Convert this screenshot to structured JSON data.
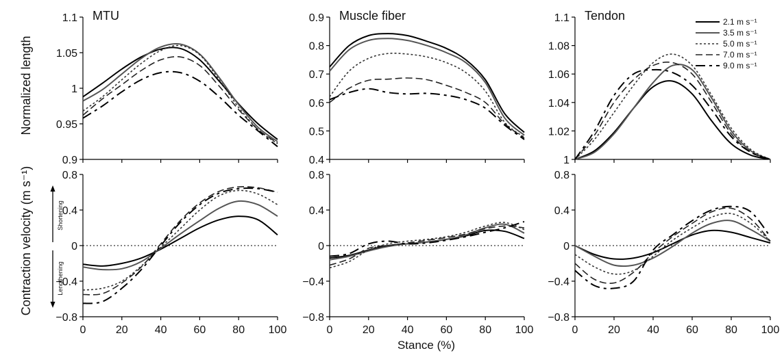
{
  "figure": {
    "ylabel_top": "Normalized length",
    "ylabel_bottom": "Contraction velocity (m s⁻¹)",
    "xlabel": "Stance (%)",
    "shortening": "Shortening",
    "lengthening": "Lengthening"
  },
  "legend": [
    {
      "label": "2.1 m s⁻¹"
    },
    {
      "label": "3.5 m s⁻¹"
    },
    {
      "label": "5.0 m s⁻¹"
    },
    {
      "label": "7.0 m s⁻¹"
    },
    {
      "label": "9.0 m s⁻¹"
    }
  ],
  "series_styles": [
    {
      "color": "#000000",
      "dash": "",
      "width": 2.0
    },
    {
      "color": "#555555",
      "dash": "",
      "width": 2.0
    },
    {
      "color": "#333333",
      "dash": "3,3",
      "width": 1.6
    },
    {
      "color": "#222222",
      "dash": "10,5",
      "width": 1.6
    },
    {
      "color": "#000000",
      "dash": "14,6,4,6",
      "width": 2.0
    }
  ],
  "chart_data": [
    {
      "type": "line",
      "title": "MTU",
      "xlim": [
        0,
        100
      ],
      "ylim": [
        0.9,
        1.1
      ],
      "yticks": [
        "0.9",
        "0.95",
        "1",
        "1.05",
        "1.1"
      ],
      "xticks": [
        "0",
        "20",
        "40",
        "60",
        "80",
        "100"
      ],
      "x": [
        0,
        10,
        20,
        30,
        40,
        50,
        60,
        70,
        80,
        90,
        100
      ],
      "series": [
        {
          "values": [
            0.988,
            1.007,
            1.027,
            1.044,
            1.055,
            1.056,
            1.04,
            1.01,
            0.978,
            0.95,
            0.928
          ]
        },
        {
          "values": [
            0.982,
            0.998,
            1.02,
            1.042,
            1.058,
            1.062,
            1.048,
            1.015,
            0.977,
            0.945,
            0.925
          ]
        },
        {
          "values": [
            0.968,
            0.988,
            1.012,
            1.035,
            1.053,
            1.06,
            1.047,
            1.012,
            0.973,
            0.942,
            0.922
          ]
        },
        {
          "values": [
            0.962,
            0.985,
            1.005,
            1.025,
            1.04,
            1.044,
            1.032,
            1.003,
            0.97,
            0.942,
            0.923
          ]
        },
        {
          "values": [
            0.958,
            0.975,
            0.995,
            1.012,
            1.022,
            1.022,
            1.01,
            0.988,
            0.962,
            0.94,
            0.918
          ]
        }
      ]
    },
    {
      "type": "line",
      "title": "Muscle fiber",
      "xlim": [
        0,
        100
      ],
      "ylim": [
        0.4,
        0.9
      ],
      "yticks": [
        "0.4",
        "0.5",
        "0.6",
        "0.7",
        "0.8",
        "0.9"
      ],
      "xticks": [
        "0",
        "20",
        "40",
        "60",
        "80",
        "100"
      ],
      "x": [
        0,
        10,
        20,
        30,
        40,
        50,
        60,
        70,
        80,
        90,
        100
      ],
      "series": [
        {
          "values": [
            0.725,
            0.8,
            0.835,
            0.842,
            0.835,
            0.815,
            0.79,
            0.75,
            0.68,
            0.56,
            0.495
          ]
        },
        {
          "values": [
            0.71,
            0.785,
            0.818,
            0.825,
            0.818,
            0.8,
            0.775,
            0.74,
            0.67,
            0.545,
            0.485
          ]
        },
        {
          "values": [
            0.62,
            0.71,
            0.755,
            0.772,
            0.77,
            0.76,
            0.74,
            0.705,
            0.64,
            0.53,
            0.478
          ]
        },
        {
          "values": [
            0.6,
            0.65,
            0.678,
            0.682,
            0.686,
            0.68,
            0.66,
            0.635,
            0.6,
            0.525,
            0.475
          ]
        },
        {
          "values": [
            0.61,
            0.635,
            0.648,
            0.635,
            0.63,
            0.632,
            0.625,
            0.61,
            0.58,
            0.52,
            0.47
          ]
        }
      ]
    },
    {
      "type": "line",
      "title": "Tendon",
      "xlim": [
        0,
        100
      ],
      "ylim": [
        1.0,
        1.1
      ],
      "yticks": [
        "1",
        "1.02",
        "1.04",
        "1.06",
        "1.08",
        "1.1"
      ],
      "xticks": [
        "0",
        "20",
        "40",
        "60",
        "80",
        "100"
      ],
      "x": [
        0,
        10,
        20,
        30,
        40,
        50,
        60,
        70,
        80,
        90,
        100
      ],
      "series": [
        {
          "values": [
            1.0,
            1.006,
            1.019,
            1.036,
            1.051,
            1.055,
            1.046,
            1.027,
            1.011,
            1.003,
            1.0
          ]
        },
        {
          "values": [
            1.0,
            1.005,
            1.018,
            1.036,
            1.054,
            1.066,
            1.063,
            1.043,
            1.02,
            1.006,
            1.0
          ]
        },
        {
          "values": [
            1.0,
            1.014,
            1.033,
            1.052,
            1.068,
            1.074,
            1.066,
            1.045,
            1.022,
            1.007,
            1.0
          ]
        },
        {
          "values": [
            1.0,
            1.017,
            1.04,
            1.056,
            1.066,
            1.068,
            1.06,
            1.04,
            1.018,
            1.005,
            1.0
          ]
        },
        {
          "values": [
            1.0,
            1.02,
            1.045,
            1.06,
            1.063,
            1.061,
            1.052,
            1.035,
            1.016,
            1.005,
            1.0
          ]
        }
      ]
    },
    {
      "type": "line",
      "title": "MTU",
      "xlim": [
        0,
        100
      ],
      "ylim": [
        -0.8,
        0.8
      ],
      "yticks": [
        "−0.8",
        "−0.4",
        "0",
        "0.4",
        "0.8"
      ],
      "xticks": [
        "0",
        "20",
        "40",
        "60",
        "80",
        "100"
      ],
      "x": [
        0,
        10,
        20,
        30,
        40,
        50,
        60,
        70,
        80,
        90,
        100
      ],
      "series": [
        {
          "values": [
            -0.21,
            -0.23,
            -0.2,
            -0.14,
            -0.04,
            0.08,
            0.2,
            0.29,
            0.33,
            0.29,
            0.12
          ]
        },
        {
          "values": [
            -0.24,
            -0.27,
            -0.26,
            -0.18,
            -0.03,
            0.13,
            0.28,
            0.42,
            0.5,
            0.46,
            0.33
          ]
        },
        {
          "values": [
            -0.5,
            -0.48,
            -0.4,
            -0.23,
            -0.02,
            0.19,
            0.4,
            0.56,
            0.62,
            0.58,
            0.46
          ]
        },
        {
          "values": [
            -0.55,
            -0.54,
            -0.42,
            -0.24,
            0.02,
            0.28,
            0.48,
            0.61,
            0.66,
            0.65,
            0.6
          ]
        },
        {
          "values": [
            -0.65,
            -0.63,
            -0.48,
            -0.27,
            0.0,
            0.26,
            0.46,
            0.59,
            0.64,
            0.64,
            0.6
          ]
        }
      ]
    },
    {
      "type": "line",
      "title": "Muscle fiber",
      "xlim": [
        0,
        100
      ],
      "ylim": [
        -0.8,
        0.8
      ],
      "yticks": [
        "−0.8",
        "−0.4",
        "0",
        "0.4",
        "0.8"
      ],
      "xticks": [
        "0",
        "20",
        "40",
        "60",
        "80",
        "100"
      ],
      "x": [
        0,
        10,
        20,
        30,
        40,
        50,
        60,
        70,
        80,
        90,
        100
      ],
      "series": [
        {
          "values": [
            -0.14,
            -0.11,
            -0.05,
            0.0,
            0.02,
            0.04,
            0.07,
            0.11,
            0.17,
            0.16,
            0.08
          ]
        },
        {
          "values": [
            -0.16,
            -0.12,
            -0.06,
            -0.01,
            0.02,
            0.04,
            0.07,
            0.12,
            0.2,
            0.24,
            0.14
          ]
        },
        {
          "values": [
            -0.25,
            -0.18,
            -0.05,
            0.02,
            0.05,
            0.07,
            0.1,
            0.15,
            0.22,
            0.26,
            0.18
          ]
        },
        {
          "values": [
            -0.22,
            -0.15,
            -0.03,
            0.0,
            0.03,
            0.06,
            0.09,
            0.13,
            0.19,
            0.22,
            0.2
          ]
        },
        {
          "values": [
            -0.12,
            -0.09,
            0.02,
            0.05,
            0.02,
            0.03,
            0.06,
            0.1,
            0.15,
            0.2,
            0.27
          ]
        }
      ]
    },
    {
      "type": "line",
      "title": "Tendon",
      "xlim": [
        0,
        100
      ],
      "ylim": [
        -0.8,
        0.8
      ],
      "yticks": [
        "−0.8",
        "−0.4",
        "0",
        "0.4",
        "0.8"
      ],
      "xticks": [
        "0",
        "20",
        "40",
        "60",
        "80",
        "100"
      ],
      "x": [
        0,
        10,
        20,
        30,
        40,
        50,
        60,
        70,
        80,
        90,
        100
      ],
      "series": [
        {
          "values": [
            0.0,
            -0.1,
            -0.15,
            -0.14,
            -0.08,
            0.02,
            0.12,
            0.17,
            0.15,
            0.09,
            0.03
          ]
        },
        {
          "values": [
            0.0,
            -0.12,
            -0.22,
            -0.22,
            -0.14,
            -0.01,
            0.14,
            0.25,
            0.28,
            0.18,
            0.05
          ]
        },
        {
          "values": [
            -0.1,
            -0.24,
            -0.32,
            -0.28,
            -0.12,
            0.06,
            0.2,
            0.32,
            0.36,
            0.25,
            0.05
          ]
        },
        {
          "values": [
            -0.2,
            -0.38,
            -0.42,
            -0.3,
            -0.08,
            0.1,
            0.25,
            0.38,
            0.42,
            0.3,
            0.05
          ]
        },
        {
          "values": [
            -0.28,
            -0.45,
            -0.48,
            -0.4,
            -0.05,
            0.12,
            0.28,
            0.4,
            0.44,
            0.38,
            0.1
          ]
        }
      ]
    }
  ]
}
